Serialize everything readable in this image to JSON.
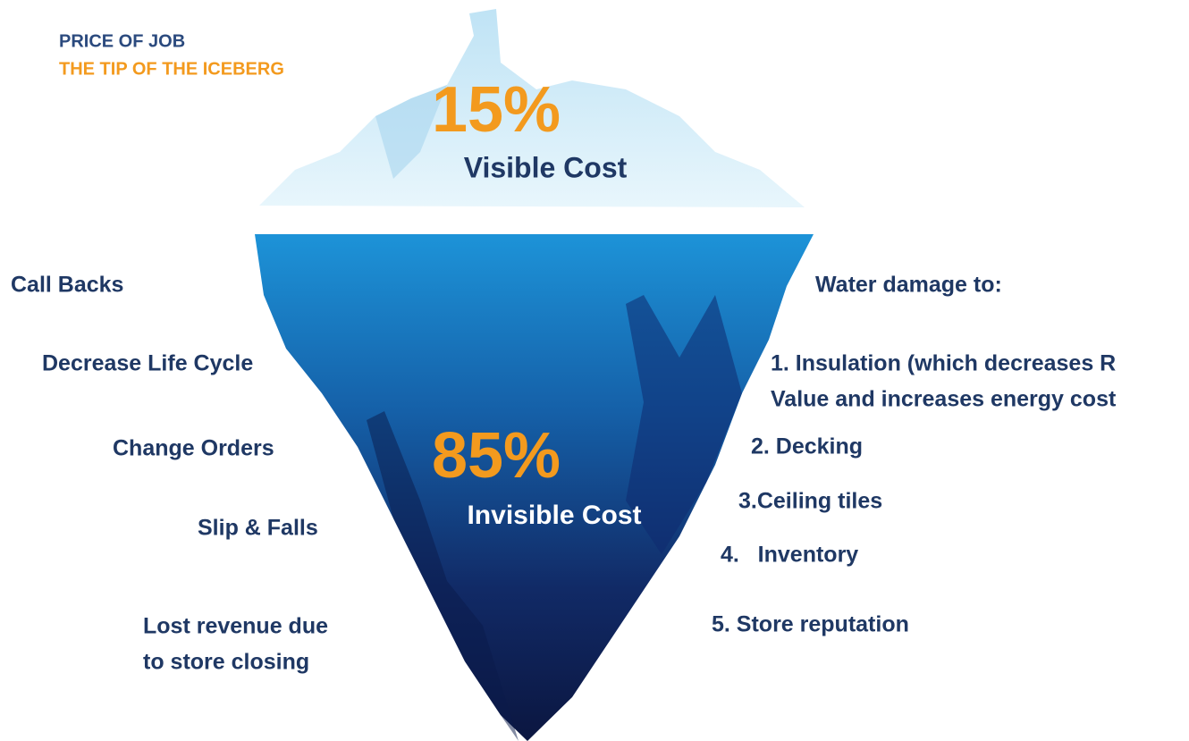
{
  "header": {
    "title": "PRICE OF JOB",
    "subtitle": "THE TIP OF THE ICEBERG"
  },
  "visible": {
    "percent": "15%",
    "label": "Visible Cost"
  },
  "invisible": {
    "percent": "85%",
    "label": "Invisible Cost"
  },
  "left_items": [
    {
      "lines": [
        "Call Backs"
      ]
    },
    {
      "lines": [
        "Decrease Life Cycle"
      ]
    },
    {
      "lines": [
        "Change Orders"
      ]
    },
    {
      "lines": [
        "Slip & Falls"
      ]
    },
    {
      "lines": [
        "Lost revenue due",
        "to store closing"
      ]
    }
  ],
  "right_items": [
    {
      "lines": [
        "Water damage to:"
      ]
    },
    {
      "lines": [
        "1. Insulation (which decreases R",
        "Value and increases energy cost"
      ]
    },
    {
      "lines": [
        "2. Decking"
      ]
    },
    {
      "lines": [
        "3.Ceiling tiles"
      ]
    },
    {
      "lines": [
        "4.   Inventory"
      ]
    },
    {
      "lines": [
        "5. Store reputation"
      ]
    }
  ]
}
